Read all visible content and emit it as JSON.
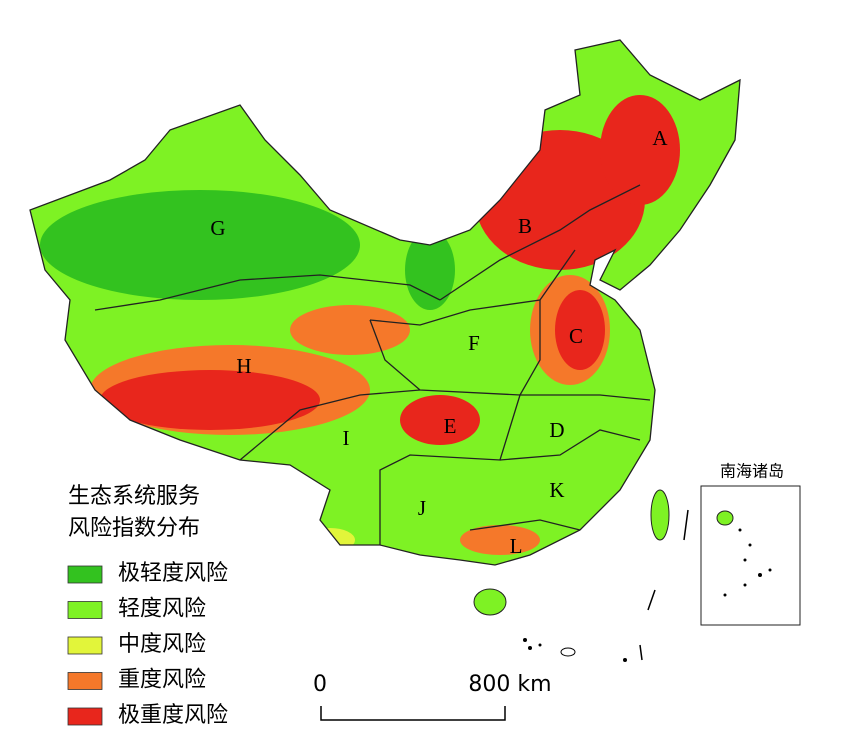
{
  "map": {
    "regions": [
      "A",
      "B",
      "C",
      "D",
      "E",
      "F",
      "G",
      "H",
      "I",
      "J",
      "K",
      "L"
    ]
  },
  "legend": {
    "title": [
      "生态系统服务",
      "风险指数分布"
    ],
    "items": [
      {
        "label": "极轻度风险",
        "color": "#33c21f"
      },
      {
        "label": "轻度风险",
        "color": "#7ef224"
      },
      {
        "label": "中度风险",
        "color": "#e2f53a"
      },
      {
        "label": "重度风险",
        "color": "#f5782a"
      },
      {
        "label": "极重度风险",
        "color": "#e8261c"
      }
    ]
  },
  "inset": {
    "title": "南海诸岛"
  },
  "scale_bar": {
    "labels": [
      "0",
      "800 km"
    ]
  }
}
